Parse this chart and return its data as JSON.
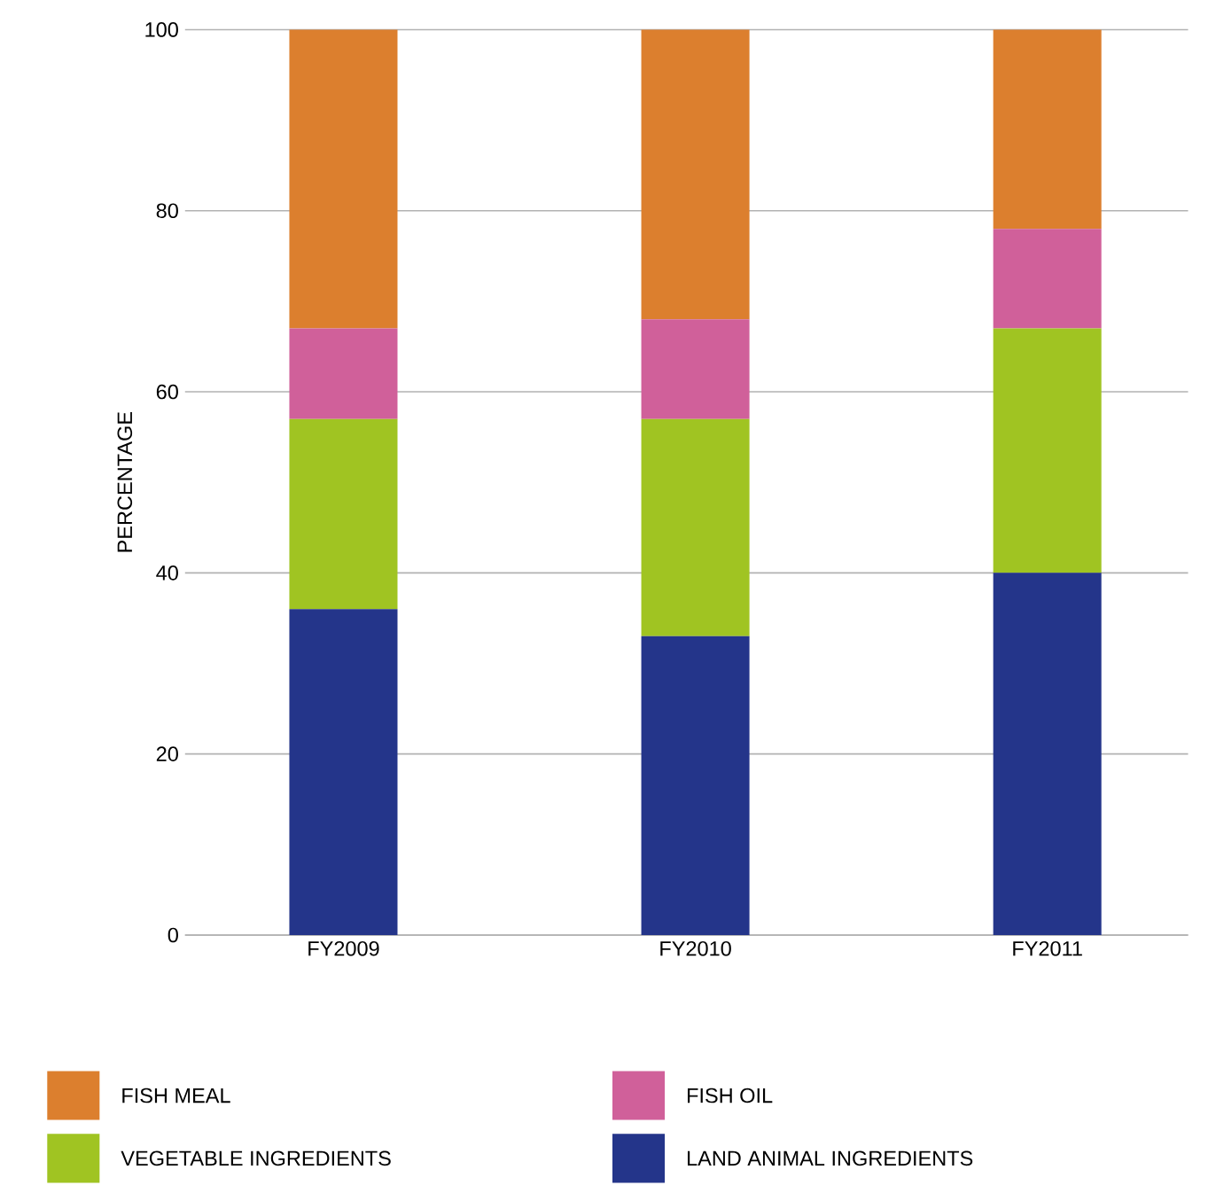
{
  "chart_data": {
    "type": "bar",
    "stacked": true,
    "ylabel": "PERCENTAGE",
    "categories": [
      "FY2009",
      "FY2010",
      "FY2011"
    ],
    "series": [
      {
        "name": "LAND ANIMAL INGREDIENTS",
        "color": "#24358a",
        "values": [
          36,
          33,
          40
        ]
      },
      {
        "name": "VEGETABLE INGREDIENTS",
        "color": "#a0c422",
        "values": [
          21,
          24,
          27
        ]
      },
      {
        "name": "FISH OIL",
        "color": "#d0609a",
        "values": [
          10,
          11,
          11
        ]
      },
      {
        "name": "FISH MEAL",
        "color": "#dc7f2e",
        "values": [
          33,
          32,
          22
        ]
      }
    ],
    "ylim": [
      0,
      100
    ],
    "yticks": [
      0,
      20,
      40,
      60,
      80,
      100
    ],
    "grid": "y",
    "legend": "bottom"
  }
}
